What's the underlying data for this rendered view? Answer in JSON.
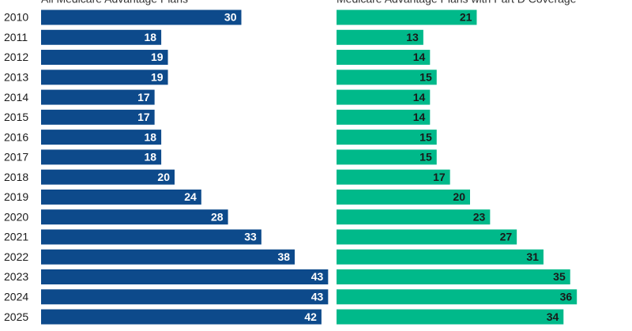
{
  "chart_data": {
    "type": "bar",
    "categories": [
      "2010",
      "2011",
      "2012",
      "2013",
      "2014",
      "2015",
      "2016",
      "2017",
      "2018",
      "2019",
      "2020",
      "2021",
      "2022",
      "2023",
      "2024",
      "2025"
    ],
    "series": [
      {
        "name": "All Medicare Advantage Plans",
        "color": "#0d4a8b",
        "values": [
          30,
          18,
          19,
          19,
          17,
          17,
          18,
          18,
          20,
          24,
          28,
          33,
          38,
          43,
          43,
          42
        ]
      },
      {
        "name": "Medicare Advantage Plans with Part D Coverage",
        "color": "#00b98a",
        "values": [
          21,
          13,
          14,
          15,
          14,
          14,
          15,
          15,
          17,
          20,
          23,
          27,
          31,
          35,
          36,
          34
        ]
      }
    ]
  }
}
